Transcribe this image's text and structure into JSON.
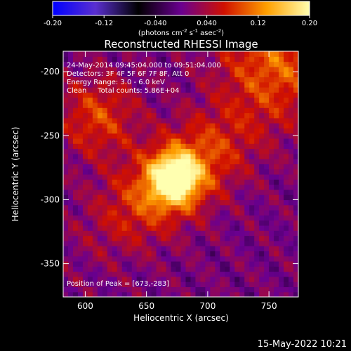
{
  "colorbar": {
    "ticks": [
      "-0.20",
      "-0.12",
      "-0.040",
      "0.040",
      "0.12",
      "0.20"
    ],
    "tick_values": [
      -0.2,
      -0.12,
      -0.04,
      0.04,
      0.12,
      0.2
    ],
    "range": [
      -0.2,
      0.2
    ],
    "unit_text": "(photons cm",
    "unit_sup1": "-2",
    "unit_mid1": " s",
    "unit_sup2": "-1",
    "unit_mid2": " asec",
    "unit_sup3": "-2",
    "unit_end": ")",
    "colors": [
      "#0000ff",
      "#5a2fd0",
      "#000000",
      "#6a0090",
      "#d01000",
      "#ffa000",
      "#ffffb0"
    ]
  },
  "chart_data": {
    "type": "heatmap",
    "title": "Reconstructed RHESSI Image",
    "xlabel": "Heliocentric X (arcsec)",
    "ylabel": "Heliocentric Y (arcsec)",
    "xlim": [
      582,
      774
    ],
    "ylim": [
      -376,
      -184
    ],
    "x_ticks": [
      600,
      650,
      700,
      750
    ],
    "y_ticks": [
      -200,
      -250,
      -300,
      -350
    ],
    "peak": [
      673,
      -283
    ],
    "annotations": [
      "24-May-2014 09:45:04.000 to 09:51:04.000",
      "Detectors: 3F 4F 5F 6F 7F 8F, Att 0",
      "Energy Range: 3.0 - 6.0 keV",
      "Clean     Total counts: 5.86E+04",
      "Position of Peak = [673,-283]"
    ]
  },
  "footer": {
    "timestamp": "15-May-2022 10:21"
  }
}
